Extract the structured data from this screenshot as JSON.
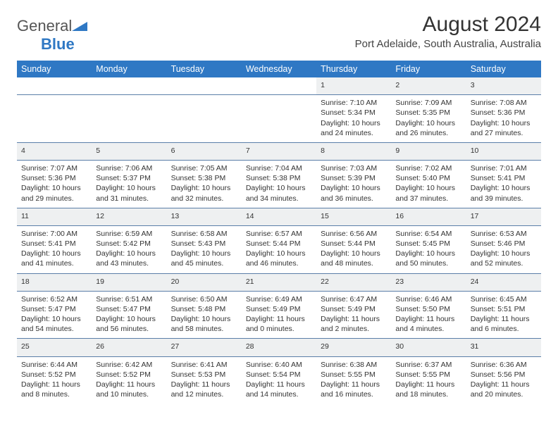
{
  "header": {
    "logo_general": "General",
    "logo_blue": "Blue",
    "month_title": "August 2024",
    "location": "Port Adelaide, South Australia, Australia"
  },
  "colors": {
    "header_bg": "#2f78c4",
    "header_fg": "#ffffff",
    "daynum_bg": "#eef0f1",
    "border": "#5a7ea8",
    "logo_tri": "#2f78c4"
  },
  "day_names": [
    "Sunday",
    "Monday",
    "Tuesday",
    "Wednesday",
    "Thursday",
    "Friday",
    "Saturday"
  ],
  "weeks": [
    [
      null,
      null,
      null,
      null,
      {
        "n": "1",
        "sr": "Sunrise: 7:10 AM",
        "ss": "Sunset: 5:34 PM",
        "d1": "Daylight: 10 hours",
        "d2": "and 24 minutes."
      },
      {
        "n": "2",
        "sr": "Sunrise: 7:09 AM",
        "ss": "Sunset: 5:35 PM",
        "d1": "Daylight: 10 hours",
        "d2": "and 26 minutes."
      },
      {
        "n": "3",
        "sr": "Sunrise: 7:08 AM",
        "ss": "Sunset: 5:36 PM",
        "d1": "Daylight: 10 hours",
        "d2": "and 27 minutes."
      }
    ],
    [
      {
        "n": "4",
        "sr": "Sunrise: 7:07 AM",
        "ss": "Sunset: 5:36 PM",
        "d1": "Daylight: 10 hours",
        "d2": "and 29 minutes."
      },
      {
        "n": "5",
        "sr": "Sunrise: 7:06 AM",
        "ss": "Sunset: 5:37 PM",
        "d1": "Daylight: 10 hours",
        "d2": "and 31 minutes."
      },
      {
        "n": "6",
        "sr": "Sunrise: 7:05 AM",
        "ss": "Sunset: 5:38 PM",
        "d1": "Daylight: 10 hours",
        "d2": "and 32 minutes."
      },
      {
        "n": "7",
        "sr": "Sunrise: 7:04 AM",
        "ss": "Sunset: 5:38 PM",
        "d1": "Daylight: 10 hours",
        "d2": "and 34 minutes."
      },
      {
        "n": "8",
        "sr": "Sunrise: 7:03 AM",
        "ss": "Sunset: 5:39 PM",
        "d1": "Daylight: 10 hours",
        "d2": "and 36 minutes."
      },
      {
        "n": "9",
        "sr": "Sunrise: 7:02 AM",
        "ss": "Sunset: 5:40 PM",
        "d1": "Daylight: 10 hours",
        "d2": "and 37 minutes."
      },
      {
        "n": "10",
        "sr": "Sunrise: 7:01 AM",
        "ss": "Sunset: 5:41 PM",
        "d1": "Daylight: 10 hours",
        "d2": "and 39 minutes."
      }
    ],
    [
      {
        "n": "11",
        "sr": "Sunrise: 7:00 AM",
        "ss": "Sunset: 5:41 PM",
        "d1": "Daylight: 10 hours",
        "d2": "and 41 minutes."
      },
      {
        "n": "12",
        "sr": "Sunrise: 6:59 AM",
        "ss": "Sunset: 5:42 PM",
        "d1": "Daylight: 10 hours",
        "d2": "and 43 minutes."
      },
      {
        "n": "13",
        "sr": "Sunrise: 6:58 AM",
        "ss": "Sunset: 5:43 PM",
        "d1": "Daylight: 10 hours",
        "d2": "and 45 minutes."
      },
      {
        "n": "14",
        "sr": "Sunrise: 6:57 AM",
        "ss": "Sunset: 5:44 PM",
        "d1": "Daylight: 10 hours",
        "d2": "and 46 minutes."
      },
      {
        "n": "15",
        "sr": "Sunrise: 6:56 AM",
        "ss": "Sunset: 5:44 PM",
        "d1": "Daylight: 10 hours",
        "d2": "and 48 minutes."
      },
      {
        "n": "16",
        "sr": "Sunrise: 6:54 AM",
        "ss": "Sunset: 5:45 PM",
        "d1": "Daylight: 10 hours",
        "d2": "and 50 minutes."
      },
      {
        "n": "17",
        "sr": "Sunrise: 6:53 AM",
        "ss": "Sunset: 5:46 PM",
        "d1": "Daylight: 10 hours",
        "d2": "and 52 minutes."
      }
    ],
    [
      {
        "n": "18",
        "sr": "Sunrise: 6:52 AM",
        "ss": "Sunset: 5:47 PM",
        "d1": "Daylight: 10 hours",
        "d2": "and 54 minutes."
      },
      {
        "n": "19",
        "sr": "Sunrise: 6:51 AM",
        "ss": "Sunset: 5:47 PM",
        "d1": "Daylight: 10 hours",
        "d2": "and 56 minutes."
      },
      {
        "n": "20",
        "sr": "Sunrise: 6:50 AM",
        "ss": "Sunset: 5:48 PM",
        "d1": "Daylight: 10 hours",
        "d2": "and 58 minutes."
      },
      {
        "n": "21",
        "sr": "Sunrise: 6:49 AM",
        "ss": "Sunset: 5:49 PM",
        "d1": "Daylight: 11 hours",
        "d2": "and 0 minutes."
      },
      {
        "n": "22",
        "sr": "Sunrise: 6:47 AM",
        "ss": "Sunset: 5:49 PM",
        "d1": "Daylight: 11 hours",
        "d2": "and 2 minutes."
      },
      {
        "n": "23",
        "sr": "Sunrise: 6:46 AM",
        "ss": "Sunset: 5:50 PM",
        "d1": "Daylight: 11 hours",
        "d2": "and 4 minutes."
      },
      {
        "n": "24",
        "sr": "Sunrise: 6:45 AM",
        "ss": "Sunset: 5:51 PM",
        "d1": "Daylight: 11 hours",
        "d2": "and 6 minutes."
      }
    ],
    [
      {
        "n": "25",
        "sr": "Sunrise: 6:44 AM",
        "ss": "Sunset: 5:52 PM",
        "d1": "Daylight: 11 hours",
        "d2": "and 8 minutes."
      },
      {
        "n": "26",
        "sr": "Sunrise: 6:42 AM",
        "ss": "Sunset: 5:52 PM",
        "d1": "Daylight: 11 hours",
        "d2": "and 10 minutes."
      },
      {
        "n": "27",
        "sr": "Sunrise: 6:41 AM",
        "ss": "Sunset: 5:53 PM",
        "d1": "Daylight: 11 hours",
        "d2": "and 12 minutes."
      },
      {
        "n": "28",
        "sr": "Sunrise: 6:40 AM",
        "ss": "Sunset: 5:54 PM",
        "d1": "Daylight: 11 hours",
        "d2": "and 14 minutes."
      },
      {
        "n": "29",
        "sr": "Sunrise: 6:38 AM",
        "ss": "Sunset: 5:55 PM",
        "d1": "Daylight: 11 hours",
        "d2": "and 16 minutes."
      },
      {
        "n": "30",
        "sr": "Sunrise: 6:37 AM",
        "ss": "Sunset: 5:55 PM",
        "d1": "Daylight: 11 hours",
        "d2": "and 18 minutes."
      },
      {
        "n": "31",
        "sr": "Sunrise: 6:36 AM",
        "ss": "Sunset: 5:56 PM",
        "d1": "Daylight: 11 hours",
        "d2": "and 20 minutes."
      }
    ]
  ]
}
